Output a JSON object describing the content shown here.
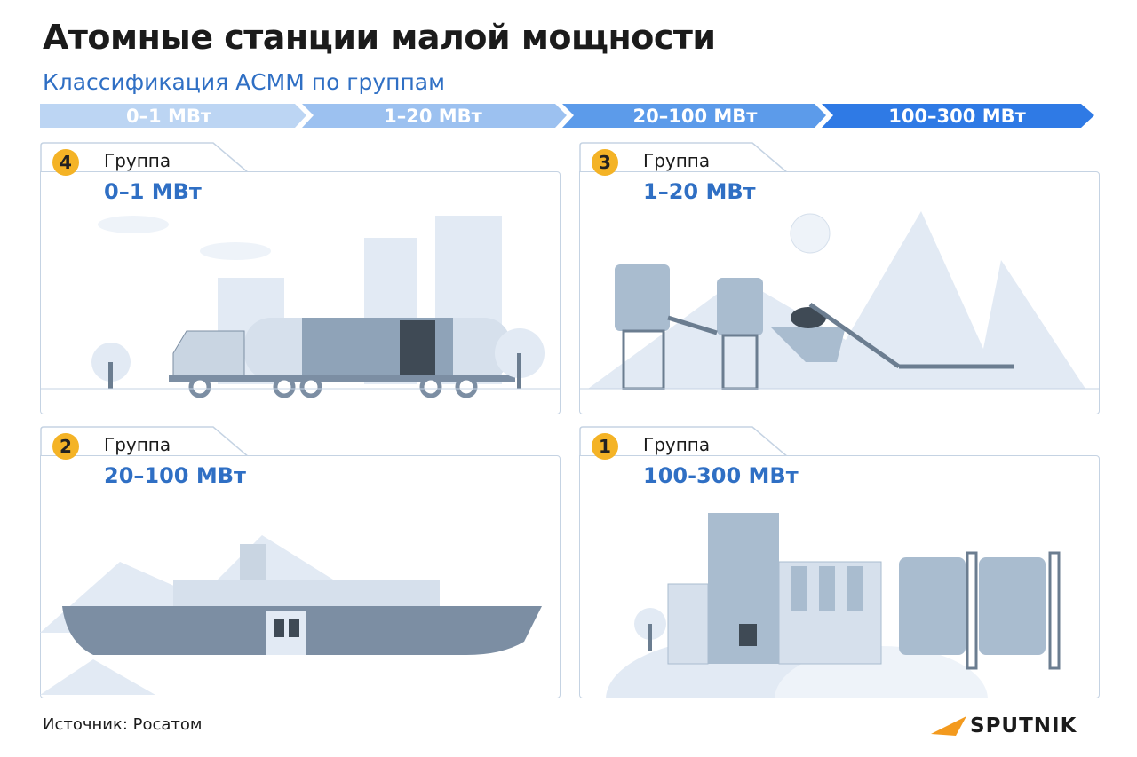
{
  "title": "Атомные станции малой мощности",
  "subtitle": "Классификация АСММ по группам",
  "scale": [
    {
      "label": "0–1 МВт",
      "color": "#bcd5f3"
    },
    {
      "label": "1–20 МВт",
      "color": "#9cc1f0"
    },
    {
      "label": "20–100 МВт",
      "color": "#5c9bea"
    },
    {
      "label": "100–300 МВт",
      "color": "#2f7ae5"
    }
  ],
  "groups": [
    {
      "number": "4",
      "label": "Группа",
      "power": "0–1 МВт",
      "illustration": "truck-mobile-plant"
    },
    {
      "number": "3",
      "label": "Группа",
      "power": "1–20 МВт",
      "illustration": "mountain-industrial-plant"
    },
    {
      "number": "2",
      "label": "Группа",
      "power": "20–100 МВт",
      "illustration": "icebreaker-ship"
    },
    {
      "number": "1",
      "label": "Группа",
      "power": "100-300 МВт",
      "illustration": "city-power-plant"
    }
  ],
  "source": "Источник: Росатом",
  "logo": {
    "text": "SPUTNIK",
    "color": "#f39a1e"
  }
}
